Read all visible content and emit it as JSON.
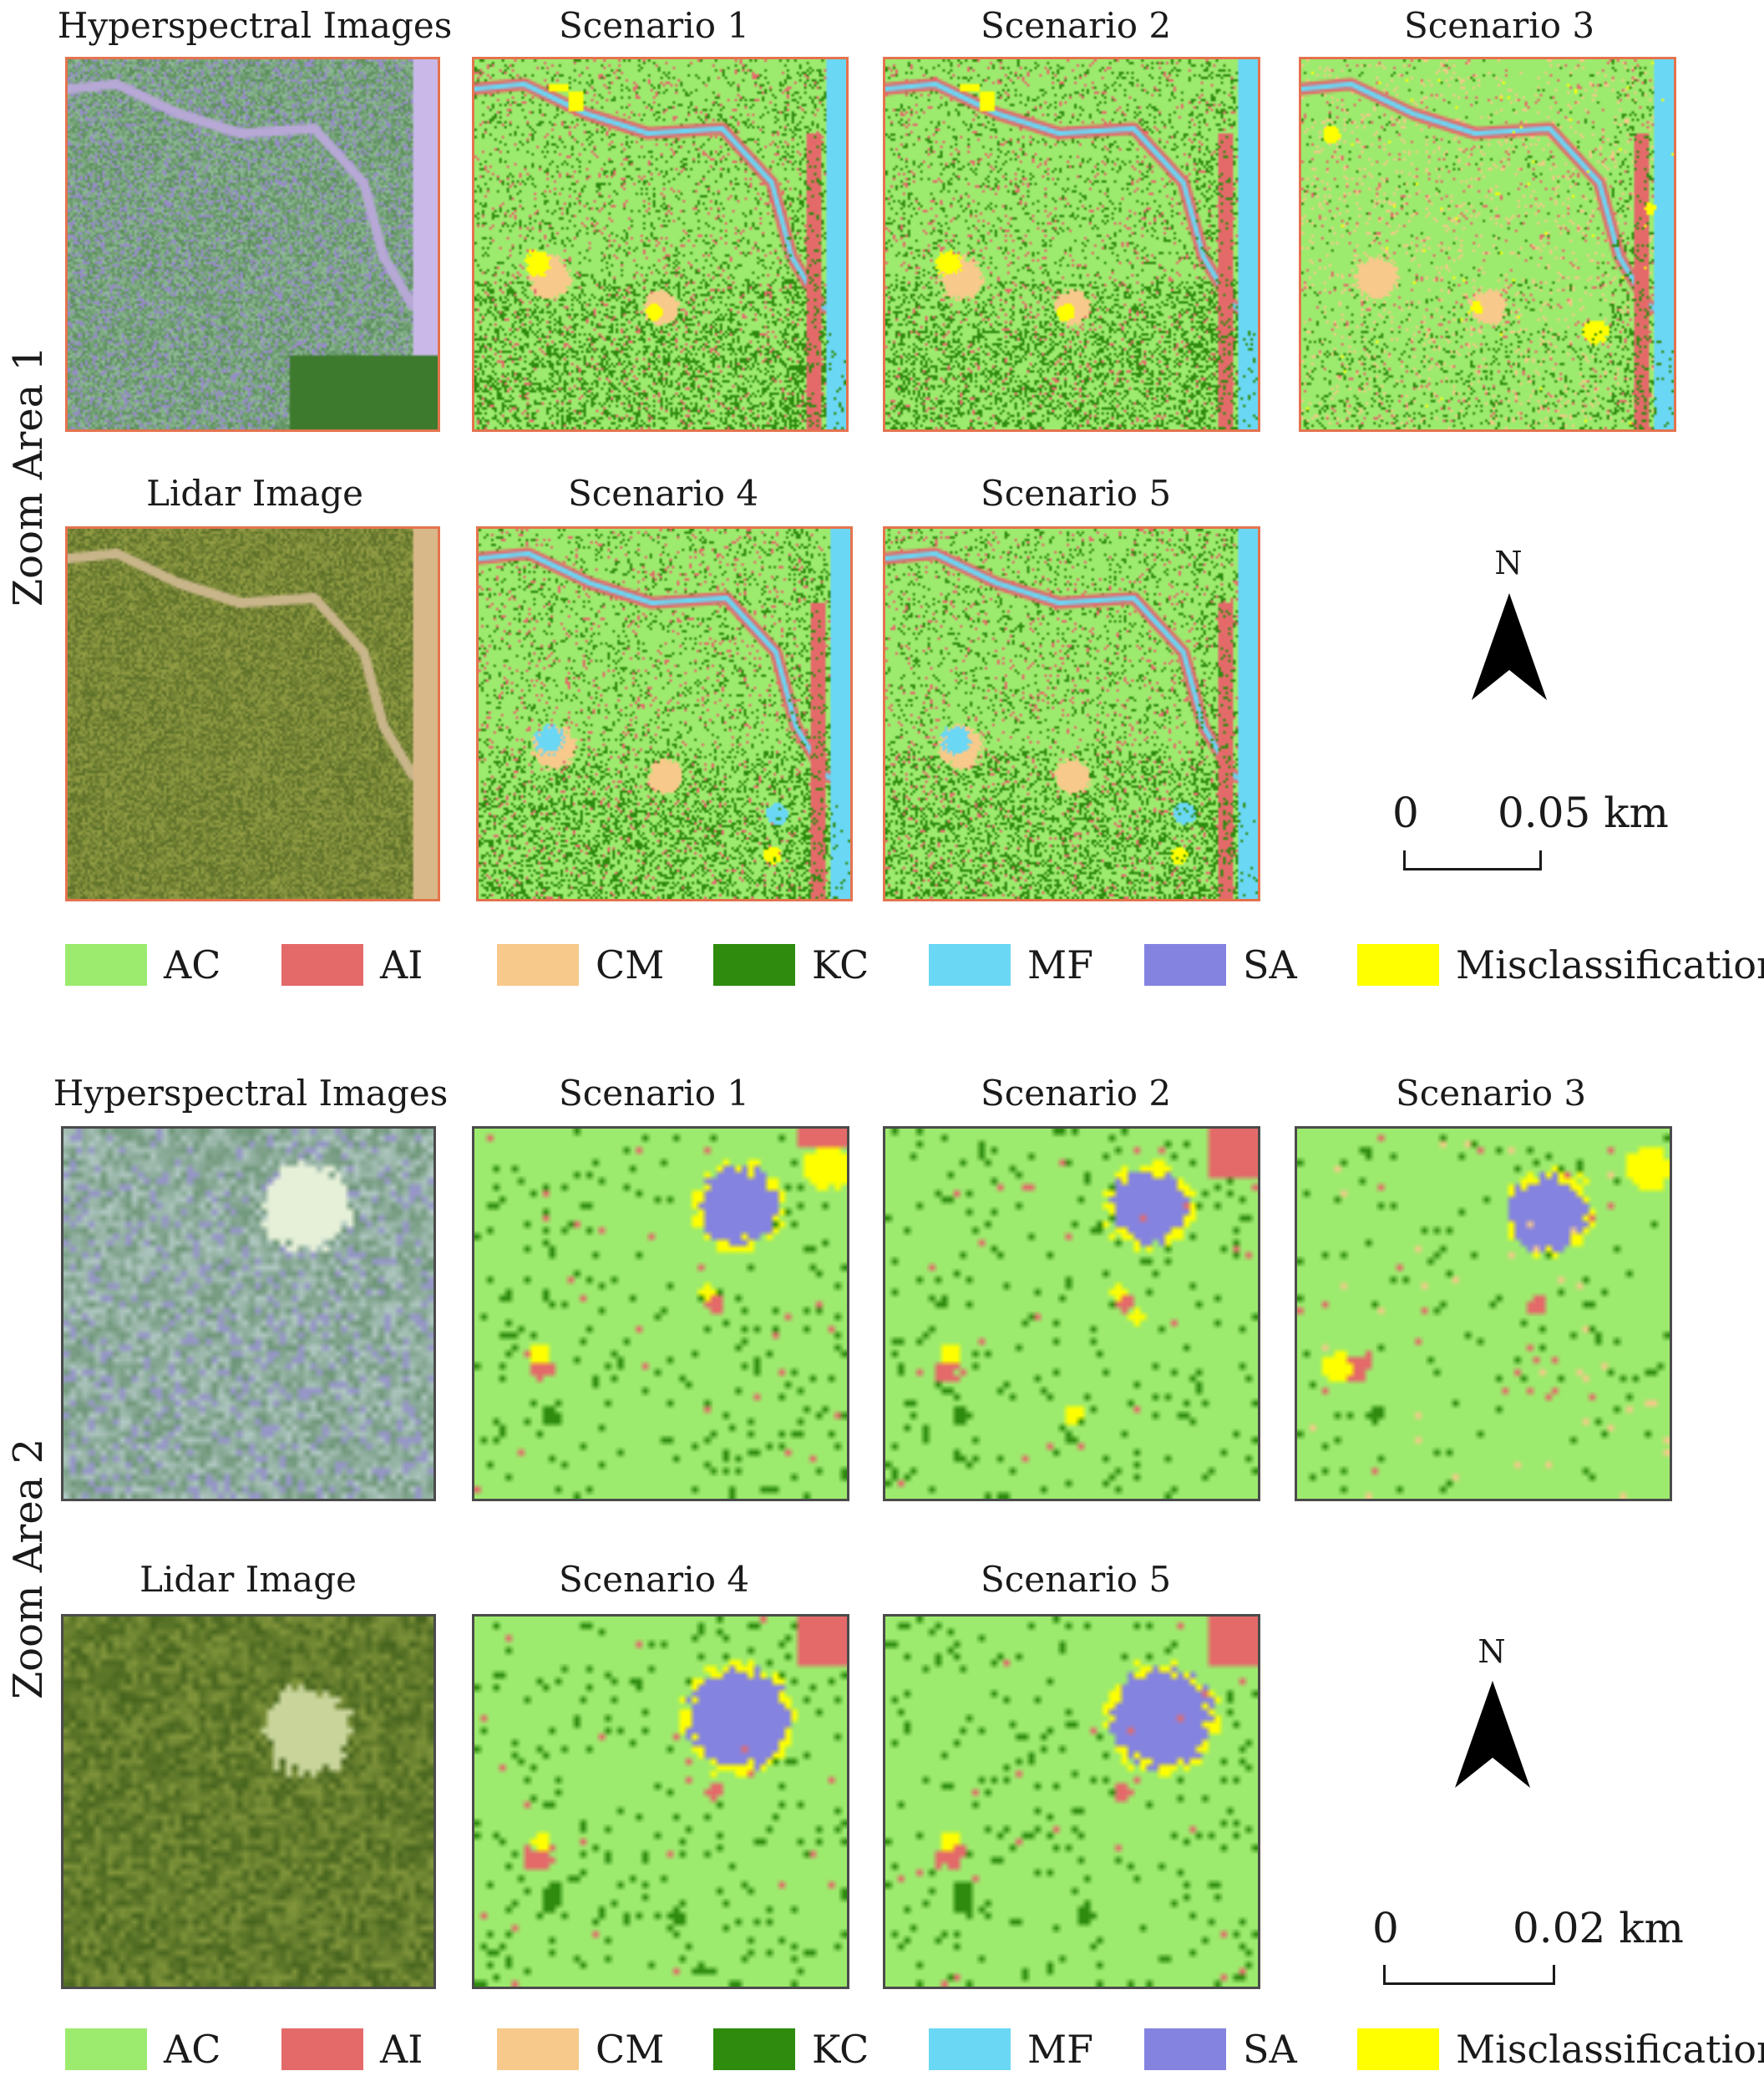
{
  "zoom_area_1": {
    "row_label": "Zoom Area 1",
    "panel_titles": {
      "hyperspectral": "Hyperspectral Images",
      "scenario_1": "Scenario 1",
      "scenario_2": "Scenario 2",
      "scenario_3": "Scenario 3",
      "lidar": "Lidar Image",
      "scenario_4": "Scenario 4",
      "scenario_5": "Scenario 5"
    },
    "north_label": "N",
    "scale": {
      "start": "0",
      "end": "0.05 km"
    }
  },
  "zoom_area_2": {
    "row_label": "Zoom Area 2",
    "panel_titles": {
      "hyperspectral": "Hyperspectral Images",
      "scenario_1": "Scenario 1",
      "scenario_2": "Scenario 2",
      "scenario_3": "Scenario 3",
      "lidar": "Lidar Image",
      "scenario_4": "Scenario 4",
      "scenario_5": "Scenario 5"
    },
    "north_label": "N",
    "scale": {
      "start": "0",
      "end": "0.02 km"
    }
  },
  "legend": [
    {
      "label": "AC",
      "color": "#9deb6e"
    },
    {
      "label": "AI",
      "color": "#e46a6a"
    },
    {
      "label": "CM",
      "color": "#f7c98a"
    },
    {
      "label": "KC",
      "color": "#2e8b0e"
    },
    {
      "label": "MF",
      "color": "#6ad7f5"
    },
    {
      "label": "SA",
      "color": "#8583e0"
    },
    {
      "label": "Misclassification",
      "color": "#ffff00"
    }
  ],
  "colors": {
    "panel_border_area_1": "#e4734e",
    "panel_border_area_2": "#4b4b4b"
  }
}
